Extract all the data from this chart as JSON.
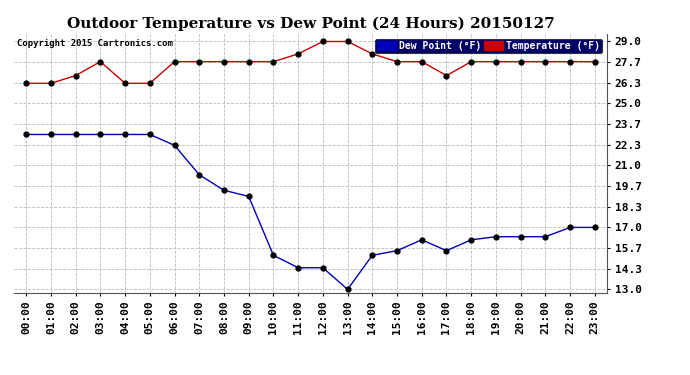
{
  "title": "Outdoor Temperature vs Dew Point (24 Hours) 20150127",
  "copyright": "Copyright 2015 Cartronics.com",
  "background_color": "#ffffff",
  "plot_bg_color": "#ffffff",
  "grid_color": "#bbbbbb",
  "hours": [
    "00:00",
    "01:00",
    "02:00",
    "03:00",
    "04:00",
    "05:00",
    "06:00",
    "07:00",
    "08:00",
    "09:00",
    "10:00",
    "11:00",
    "12:00",
    "13:00",
    "14:00",
    "15:00",
    "16:00",
    "17:00",
    "18:00",
    "19:00",
    "20:00",
    "21:00",
    "22:00",
    "23:00"
  ],
  "temperature": [
    26.3,
    26.3,
    26.8,
    27.7,
    26.3,
    26.3,
    27.7,
    27.7,
    27.7,
    27.7,
    27.7,
    28.2,
    29.0,
    29.0,
    28.2,
    27.7,
    27.7,
    26.8,
    27.7,
    27.7,
    27.7,
    27.7,
    27.7,
    27.7
  ],
  "dew_point": [
    23.0,
    23.0,
    23.0,
    23.0,
    23.0,
    23.0,
    22.3,
    20.4,
    19.4,
    19.0,
    15.2,
    14.4,
    14.4,
    13.0,
    15.2,
    15.5,
    16.2,
    15.5,
    16.2,
    16.4,
    16.4,
    16.4,
    17.0,
    17.0
  ],
  "temp_color": "#cc0000",
  "dew_color": "#0000bb",
  "ylim_min": 13.0,
  "ylim_max": 29.0,
  "yticks": [
    13.0,
    14.3,
    15.7,
    17.0,
    18.3,
    19.7,
    21.0,
    22.3,
    23.7,
    25.0,
    26.3,
    27.7,
    29.0
  ],
  "legend_dew_label": "Dew Point (°F)",
  "legend_temp_label": "Temperature (°F)",
  "legend_dew_bg": "#0000bb",
  "legend_temp_bg": "#cc0000",
  "title_fontsize": 11,
  "tick_fontsize": 8,
  "marker_size": 3.5,
  "linewidth": 1.0
}
